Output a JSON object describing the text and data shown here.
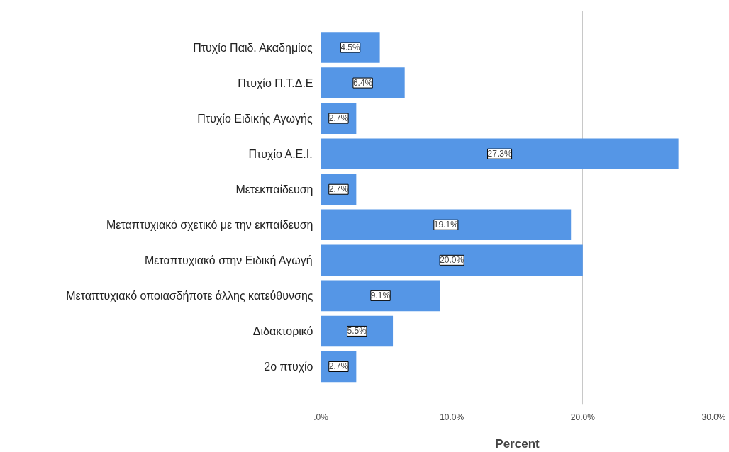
{
  "chart_data": {
    "type": "bar",
    "orientation": "horizontal",
    "xlabel": "Percent",
    "categories": [
      "Πτυχίο Παιδ. Ακαδημίας",
      "Πτυχίο Π.Τ.Δ.Ε",
      "Πτυχίο Ειδικής Αγωγής",
      "Πτυχίο Α.Ε.Ι.",
      "Μετεκπαίδευση",
      "Μεταπτυχιακό σχετικό με την εκπαίδευση",
      "Μεταπτυχιακό στην Ειδική Αγωγή",
      "Μεταπτυχιακό οποιασδήποτε άλλης κατεύθυνσης",
      "Διδακτορικό",
      "2ο πτυχίο"
    ],
    "values": [
      4.5,
      6.4,
      2.7,
      27.3,
      2.7,
      19.1,
      20.0,
      9.1,
      5.5,
      2.7
    ],
    "value_labels": [
      "4.5%",
      "6.4%",
      "2.7%",
      "27.3%",
      "2.7%",
      "19.1%",
      "20.0%",
      "9.1%",
      "5.5%",
      "2.7%"
    ],
    "color": "#5596e6",
    "xlim": [
      0,
      30
    ],
    "xticks": [
      {
        "value": 0,
        "label": ".0%"
      },
      {
        "value": 10,
        "label": "10.0%"
      },
      {
        "value": 20,
        "label": "20.0%"
      },
      {
        "value": 30,
        "label": "30.0%"
      }
    ],
    "grid": "x"
  }
}
